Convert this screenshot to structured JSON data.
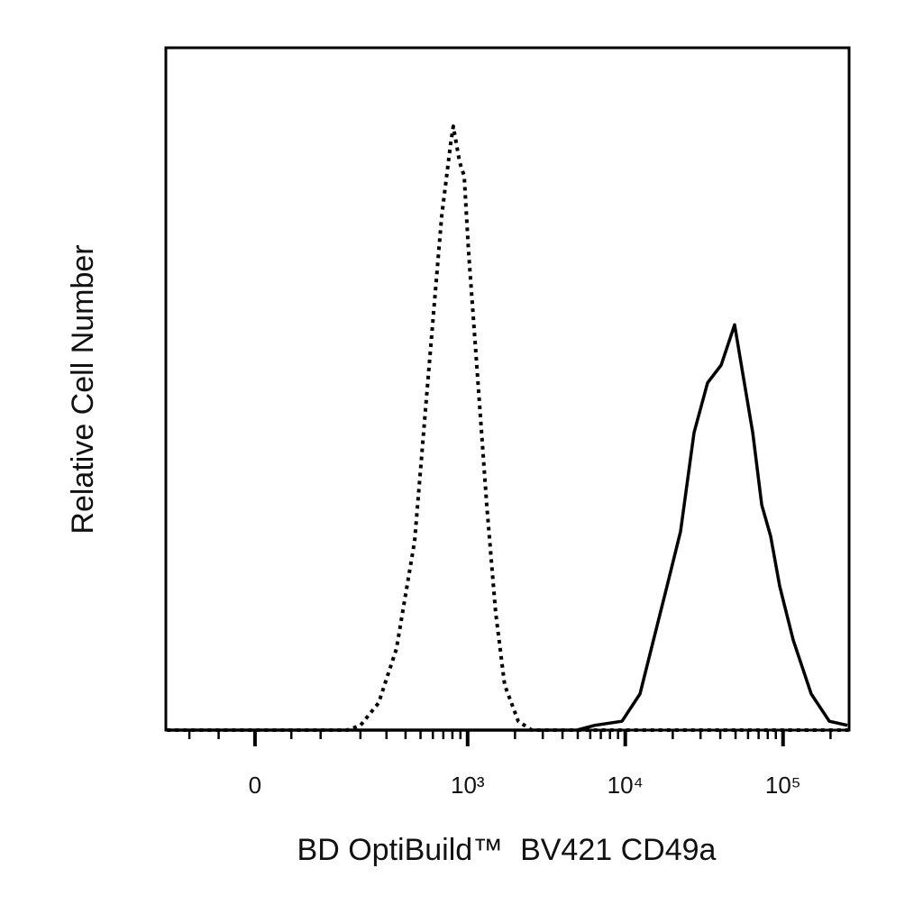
{
  "chart_data": {
    "type": "line",
    "xlabel": "BD OptiBuild™  BV421 CD49a",
    "ylabel": "Relative Cell Number",
    "xscale": "biexponential",
    "xlim": [
      -153,
      262144
    ],
    "ylim": [
      0,
      100
    ],
    "xticks": [
      0,
      {
        "value": 1000,
        "label": "10³"
      },
      {
        "value": 10000,
        "label": "10⁴"
      },
      {
        "value": 100000,
        "label": "10⁵"
      }
    ],
    "xminorticks": [
      -100,
      -50,
      50,
      100,
      200,
      300,
      400,
      500,
      600,
      700,
      800,
      900,
      2000,
      3000,
      4000,
      5000,
      6000,
      7000,
      8000,
      9000,
      20000,
      30000,
      40000,
      50000,
      60000,
      70000,
      80000,
      90000,
      200000
    ],
    "series": [
      {
        "color": "#000000",
        "dash": "dotted",
        "x": [
          -150,
          0,
          100,
          161,
          200,
          266,
          349,
          458,
          559,
          683,
          779,
          811,
          890,
          951,
          1015,
          1159,
          1323,
          1508,
          1720,
          2097,
          2555,
          262000
        ],
        "values": [
          0,
          0,
          0,
          0,
          0.7,
          4.0,
          11.9,
          27.7,
          51.5,
          75.3,
          85.9,
          88.5,
          83.2,
          81.2,
          70.0,
          51.5,
          33.0,
          17.2,
          6.6,
          1.3,
          0,
          0
        ]
      },
      {
        "color": "#000000",
        "dash": "solid",
        "x": [
          -150,
          0,
          4932,
          6423,
          9525,
          12393,
          15100,
          18392,
          22410,
          27297,
          33243,
          40527,
          49347,
          56250,
          64215,
          73260,
          83520,
          95265,
          116010,
          150930,
          196650,
          255780
        ],
        "values": [
          0,
          0,
          0,
          0.7,
          1.3,
          5.3,
          13.2,
          21.1,
          29.1,
          43.6,
          50.9,
          53.5,
          59.4,
          51.5,
          43.6,
          33.0,
          28.4,
          21.1,
          13.2,
          5.3,
          1.3,
          0.7
        ]
      }
    ]
  }
}
